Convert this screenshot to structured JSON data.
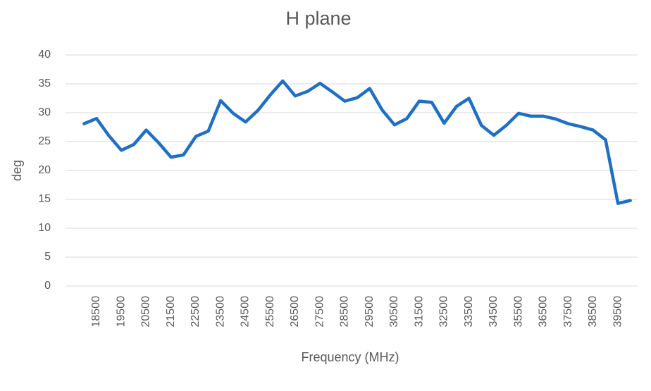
{
  "chart_data": {
    "type": "line",
    "title": "H plane",
    "x_label": "Frequency (MHz)",
    "y_label": "deg",
    "categories": [
      null,
      "18500",
      null,
      "19500",
      null,
      "20500",
      null,
      "21500",
      null,
      "22500",
      null,
      "23500",
      null,
      "24500",
      null,
      "25500",
      null,
      "26500",
      null,
      "27500",
      null,
      "28500",
      null,
      "29500",
      null,
      "30500",
      null,
      "31500",
      null,
      "32500",
      null,
      "33500",
      null,
      "34500",
      null,
      "35500",
      null,
      "36500",
      null,
      "37500",
      null,
      "38500",
      null,
      "39500",
      null
    ],
    "series": [
      {
        "name": "H plane",
        "color": "#1f6fc5",
        "values": [
          28.1,
          29,
          26,
          23.5,
          24.5,
          27,
          24.8,
          22.3,
          22.7,
          25.9,
          26.8,
          32.1,
          29.9,
          28.4,
          30.4,
          33.1,
          35.5,
          32.9,
          33.7,
          35.1,
          33.6,
          32,
          32.6,
          34.2,
          30.5,
          27.9,
          29,
          32,
          31.8,
          28.2,
          31.1,
          32.5,
          27.8,
          26.1,
          27.8,
          29.9,
          29.4,
          29.4,
          28.9,
          28.1,
          27.6,
          27,
          25.3,
          14.3,
          14.8
        ]
      }
    ],
    "ylim": [
      0,
      40
    ],
    "yticks": [
      0,
      5,
      10,
      15,
      20,
      25,
      30,
      35,
      40
    ],
    "grid": true
  }
}
